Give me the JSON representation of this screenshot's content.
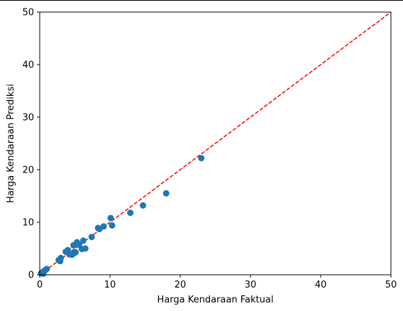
{
  "chart_data": {
    "type": "scatter",
    "xlabel": "Harga Kendaraan Faktual",
    "ylabel": "Harga Kendaraan Prediksi",
    "xlim": [
      0,
      50
    ],
    "ylim": [
      0,
      50
    ],
    "xticks": [
      0,
      10,
      20,
      30,
      40,
      50
    ],
    "yticks": [
      0,
      10,
      20,
      30,
      40,
      50
    ],
    "grid": false,
    "point_color": "#1f77b4",
    "reference_line": {
      "style": "dashed",
      "color": "#ff0000",
      "from": [
        0,
        0
      ],
      "to": [
        50,
        50
      ]
    },
    "points": [
      {
        "x": 0.2,
        "y": 0.3
      },
      {
        "x": 0.4,
        "y": 0.5
      },
      {
        "x": 0.6,
        "y": 0.7
      },
      {
        "x": 0.8,
        "y": 0.9
      },
      {
        "x": 1.0,
        "y": 1.1
      },
      {
        "x": 0.5,
        "y": 0.2
      },
      {
        "x": 2.7,
        "y": 2.8
      },
      {
        "x": 3.0,
        "y": 3.2
      },
      {
        "x": 2.9,
        "y": 2.6
      },
      {
        "x": 3.7,
        "y": 4.4
      },
      {
        "x": 4.0,
        "y": 4.7
      },
      {
        "x": 4.2,
        "y": 3.9
      },
      {
        "x": 4.6,
        "y": 3.8
      },
      {
        "x": 4.8,
        "y": 5.6
      },
      {
        "x": 4.9,
        "y": 4.1
      },
      {
        "x": 5.1,
        "y": 4.3
      },
      {
        "x": 5.3,
        "y": 6.2
      },
      {
        "x": 5.6,
        "y": 5.7
      },
      {
        "x": 6.0,
        "y": 4.9
      },
      {
        "x": 6.2,
        "y": 6.5
      },
      {
        "x": 6.5,
        "y": 5.0
      },
      {
        "x": 7.4,
        "y": 7.2
      },
      {
        "x": 8.3,
        "y": 8.9
      },
      {
        "x": 8.5,
        "y": 8.7
      },
      {
        "x": 9.1,
        "y": 9.2
      },
      {
        "x": 10.1,
        "y": 10.8
      },
      {
        "x": 10.3,
        "y": 9.4
      },
      {
        "x": 12.9,
        "y": 11.8
      },
      {
        "x": 14.7,
        "y": 13.2
      },
      {
        "x": 18.0,
        "y": 15.5
      },
      {
        "x": 23.0,
        "y": 22.2
      }
    ]
  }
}
